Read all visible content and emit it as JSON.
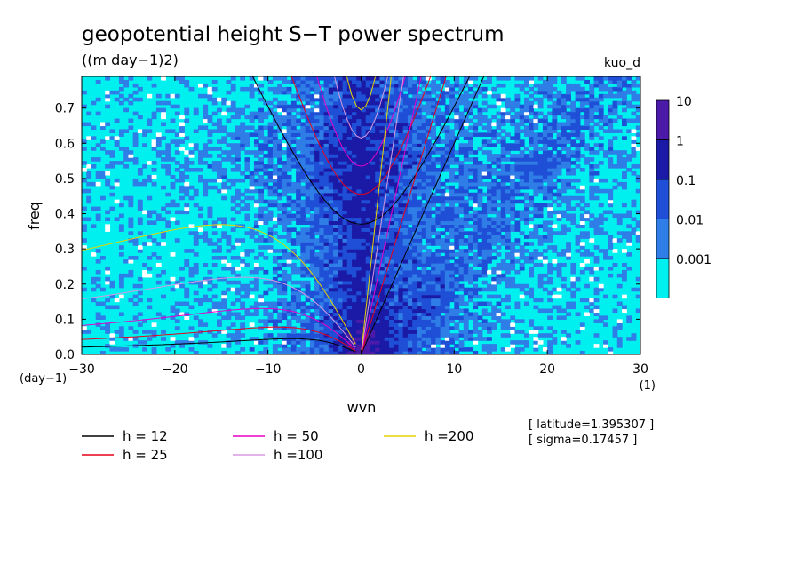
{
  "chart_data": {
    "type": "heatmap",
    "title": "geopotential height S−T power spectrum",
    "subtitle": "((m day−1)2)",
    "tag": "kuo_d",
    "xlabel": "wvn",
    "ylabel": "freq",
    "xunit": "(1)",
    "yunit": "(day−1)",
    "xlim": [
      -30,
      30
    ],
    "ylim": [
      0,
      0.79
    ],
    "xticks": [
      -30,
      -20,
      -10,
      0,
      10,
      20,
      30
    ],
    "yticks": [
      0.0,
      0.1,
      0.2,
      0.3,
      0.4,
      0.5,
      0.6,
      0.7
    ],
    "colorbar": {
      "levels": [
        "10",
        "1",
        "0.1",
        "0.01",
        "0.001"
      ],
      "colors": [
        "#4b1aa8",
        "#1a1aa6",
        "#1f4fd6",
        "#2f7de6",
        "#00f0f0"
      ]
    },
    "colors": {
      "background": "#00f0f0",
      "level1": "#2f7de6",
      "level2": "#1f4fd6",
      "level3": "#1a1aa6",
      "level4": "#4b1aa8"
    },
    "series": [
      {
        "name": "h = 12",
        "color": "#000000",
        "h": 12
      },
      {
        "name": "h = 25",
        "color": "#e8001a",
        "h": 25
      },
      {
        "name": "h = 50",
        "color": "#e800c8",
        "h": 50
      },
      {
        "name": "h =100",
        "color": "#d89ae0",
        "h": 100
      },
      {
        "name": "h =200",
        "color": "#e6d400",
        "h": 200
      }
    ],
    "annotations": [
      "[ latitude=1.395307 ]",
      "[ sigma=0.17457 ]"
    ]
  }
}
